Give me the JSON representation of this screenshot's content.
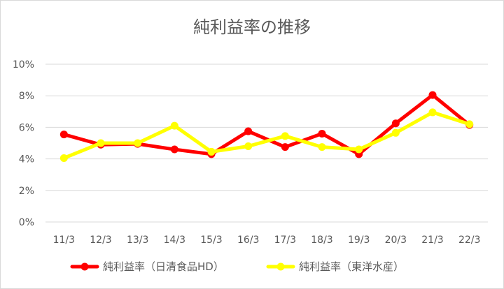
{
  "chart_data": {
    "type": "line",
    "title": "純利益率の推移",
    "categories": [
      "11/3",
      "12/3",
      "13/3",
      "14/3",
      "15/3",
      "16/3",
      "17/3",
      "18/3",
      "19/3",
      "20/3",
      "21/3",
      "22/3"
    ],
    "ylim": [
      0,
      10
    ],
    "yticks": [
      "0%",
      "2%",
      "4%",
      "6%",
      "8%",
      "10%"
    ],
    "grid": true,
    "legend_position": "bottom",
    "series": [
      {
        "name": "純利益率（日清食品HD）",
        "color": "#ff0000",
        "values": [
          5.55,
          4.9,
          4.95,
          4.6,
          4.3,
          5.75,
          4.75,
          5.6,
          4.3,
          6.25,
          8.05,
          6.15
        ]
      },
      {
        "name": "純利益率（東洋水産）",
        "color": "#ffff00",
        "values": [
          4.05,
          5.0,
          5.0,
          6.1,
          4.45,
          4.8,
          5.45,
          4.75,
          4.6,
          5.65,
          6.95,
          6.2
        ]
      }
    ]
  }
}
